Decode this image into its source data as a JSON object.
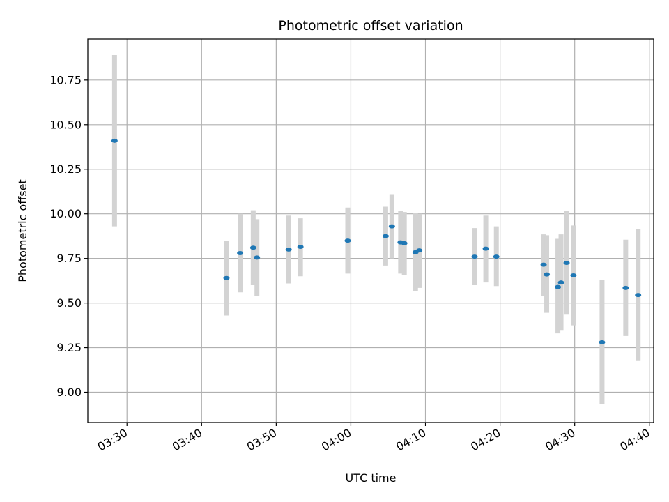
{
  "chart_data": {
    "type": "scatter",
    "title": "Photometric offset variation",
    "xlabel": "UTC time",
    "ylabel": "Photometric offset",
    "grid": true,
    "colors": {
      "point": "#1f77b4",
      "errorbar": "#d3d3d3",
      "grid": "#b0b0b0"
    },
    "xlim": [
      "03:24:45",
      "04:40:35"
    ],
    "ylim": [
      8.83,
      10.98
    ],
    "x_ticks": [
      "03:30",
      "03:40",
      "03:50",
      "04:00",
      "04:10",
      "04:20",
      "04:30",
      "04:40"
    ],
    "y_ticks": [
      "9.00",
      "9.25",
      "9.50",
      "9.75",
      "10.00",
      "10.25",
      "10.50",
      "10.75"
    ],
    "points": [
      {
        "x": "03:28:20",
        "y": 10.41,
        "ylow": 9.93,
        "yhigh": 10.89
      },
      {
        "x": "03:43:20",
        "y": 9.64,
        "ylow": 9.43,
        "yhigh": 9.85
      },
      {
        "x": "03:45:10",
        "y": 9.78,
        "ylow": 9.56,
        "yhigh": 10.0
      },
      {
        "x": "03:46:55",
        "y": 9.81,
        "ylow": 9.6,
        "yhigh": 10.02
      },
      {
        "x": "03:47:25",
        "y": 9.755,
        "ylow": 9.54,
        "yhigh": 9.97
      },
      {
        "x": "03:51:40",
        "y": 9.8,
        "ylow": 9.61,
        "yhigh": 9.99
      },
      {
        "x": "03:53:15",
        "y": 9.815,
        "ylow": 9.65,
        "yhigh": 9.975
      },
      {
        "x": "03:59:35",
        "y": 9.85,
        "ylow": 9.665,
        "yhigh": 10.035
      },
      {
        "x": "04:04:40",
        "y": 9.875,
        "ylow": 9.71,
        "yhigh": 10.04
      },
      {
        "x": "04:05:30",
        "y": 9.93,
        "ylow": 9.75,
        "yhigh": 10.11
      },
      {
        "x": "04:06:40",
        "y": 9.84,
        "ylow": 9.665,
        "yhigh": 10.015
      },
      {
        "x": "04:07:10",
        "y": 9.835,
        "ylow": 9.655,
        "yhigh": 10.01
      },
      {
        "x": "04:08:40",
        "y": 9.785,
        "ylow": 9.565,
        "yhigh": 10.005
      },
      {
        "x": "04:09:10",
        "y": 9.795,
        "ylow": 9.585,
        "yhigh": 10.0
      },
      {
        "x": "04:16:35",
        "y": 9.76,
        "ylow": 9.6,
        "yhigh": 9.92
      },
      {
        "x": "04:18:05",
        "y": 9.805,
        "ylow": 9.615,
        "yhigh": 9.99
      },
      {
        "x": "04:19:30",
        "y": 9.76,
        "ylow": 9.595,
        "yhigh": 9.93
      },
      {
        "x": "04:25:50",
        "y": 9.715,
        "ylow": 9.54,
        "yhigh": 9.885
      },
      {
        "x": "04:26:15",
        "y": 9.66,
        "ylow": 9.445,
        "yhigh": 9.88
      },
      {
        "x": "04:27:45",
        "y": 9.59,
        "ylow": 9.33,
        "yhigh": 9.86
      },
      {
        "x": "04:28:10",
        "y": 9.615,
        "ylow": 9.345,
        "yhigh": 9.885
      },
      {
        "x": "04:28:55",
        "y": 9.725,
        "ylow": 9.435,
        "yhigh": 10.015
      },
      {
        "x": "04:29:50",
        "y": 9.655,
        "ylow": 9.375,
        "yhigh": 9.935
      },
      {
        "x": "04:33:40",
        "y": 9.28,
        "ylow": 8.935,
        "yhigh": 9.63
      },
      {
        "x": "04:36:50",
        "y": 9.585,
        "ylow": 9.315,
        "yhigh": 9.855
      },
      {
        "x": "04:38:30",
        "y": 9.545,
        "ylow": 9.175,
        "yhigh": 9.915
      }
    ]
  }
}
